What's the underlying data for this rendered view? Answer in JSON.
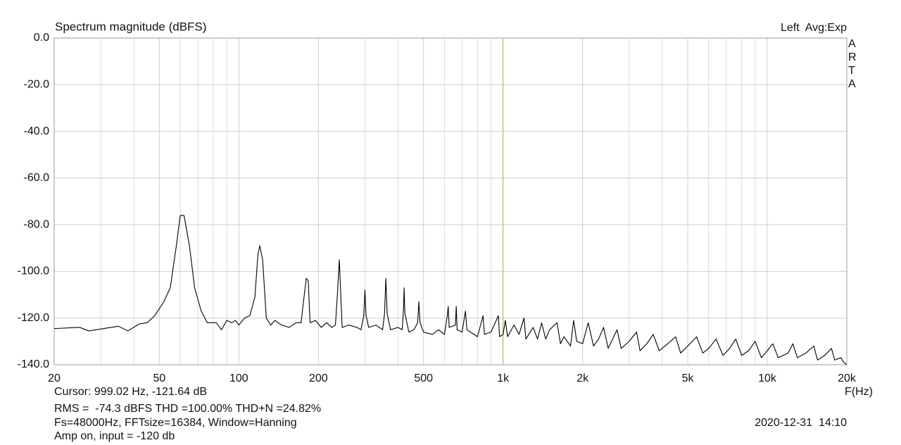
{
  "chart_data": {
    "type": "line",
    "title": "Spectrum magnitude (dBFS)",
    "header_right": "Left  Avg:Exp",
    "side_label": [
      "A",
      "R",
      "T",
      "A"
    ],
    "x_label": "F(Hz)",
    "x_scale": "log",
    "xlim": [
      20,
      20000
    ],
    "xticks": [
      20,
      50,
      100,
      200,
      500,
      {
        "value": 1000,
        "label": "1k"
      },
      {
        "value": 2000,
        "label": "2k"
      },
      {
        "value": 5000,
        "label": "5k"
      },
      {
        "value": 10000,
        "label": "10k"
      },
      {
        "value": 20000,
        "label": "20k"
      }
    ],
    "x_minor_grid": [
      30,
      40,
      60,
      70,
      80,
      90,
      300,
      400,
      600,
      700,
      800,
      900,
      3000,
      4000,
      6000,
      7000,
      8000,
      9000
    ],
    "ylim": [
      -140,
      0
    ],
    "yticks": [
      {
        "value": 0,
        "label": "0.0"
      },
      {
        "value": -20,
        "label": "-20.0"
      },
      {
        "value": -40,
        "label": "-40.0"
      },
      {
        "value": -60,
        "label": "-60.0"
      },
      {
        "value": -80,
        "label": "-80.0"
      },
      {
        "value": -100,
        "label": "-100.0"
      },
      {
        "value": -120,
        "label": "-120.0"
      },
      {
        "value": -140,
        "label": "-140.0"
      }
    ],
    "grid": true,
    "cursor_x": 999.02,
    "cursor_color": "#b7c98c",
    "cursor_text": "Cursor: 999.02 Hz, -121.64 dB",
    "stats_text": "RMS =  -74.3 dBFS THD =100.00% THD+N =24.82%",
    "stats_color": "#cc1f1f",
    "settings_text": "Fs=48000Hz, FFTsize=16384, Window=Hanning",
    "timestamp": "2020-12-31  14:10",
    "note_text": "Amp on, input = -120 db",
    "x": [
      20,
      25,
      27,
      35,
      38,
      42,
      45,
      48,
      52,
      55,
      58,
      60,
      62,
      65,
      68,
      72,
      76,
      82,
      86,
      90,
      94,
      97,
      100,
      105,
      110,
      115,
      118,
      120,
      123,
      127,
      132,
      137,
      145,
      155,
      165,
      172,
      176,
      180,
      183,
      186,
      195,
      205,
      215,
      225,
      232,
      236,
      240,
      243,
      246,
      260,
      280,
      290,
      297,
      300,
      303,
      310,
      330,
      350,
      356,
      360,
      364,
      375,
      400,
      415,
      420,
      422,
      425,
      440,
      460,
      475,
      480,
      485,
      500,
      540,
      570,
      600,
      615,
      620,
      625,
      660,
      665,
      670,
      700,
      720,
      730,
      800,
      840,
      850,
      900,
      960,
      970,
      1000,
      1020,
      1040,
      1100,
      1150,
      1200,
      1220,
      1300,
      1350,
      1400,
      1450,
      1500,
      1600,
      1650,
      1700,
      1800,
      1850,
      1900,
      2000,
      2100,
      2200,
      2300,
      2400,
      2500,
      2700,
      2800,
      3000,
      3200,
      3300,
      3500,
      3700,
      3900,
      4200,
      4500,
      4700,
      5000,
      5400,
      5700,
      6000,
      6400,
      6800,
      7200,
      7600,
      8000,
      8500,
      9000,
      9500,
      10000,
      10500,
      11000,
      12000,
      12500,
      13000,
      14000,
      15000,
      15500,
      16500,
      17500,
      18000,
      19000,
      19500,
      20000
    ],
    "series": [
      {
        "color": "#000000",
        "values": [
          -124.5,
          -124,
          -125.5,
          -123.5,
          -125.5,
          -122.5,
          -122,
          -119,
          -113,
          -107,
          -89,
          -76,
          -76,
          -89,
          -107,
          -117,
          -122,
          -122,
          -125,
          -121,
          -122,
          -121,
          -123,
          -120,
          -119,
          -111,
          -93,
          -89,
          -95,
          -120,
          -123,
          -121,
          -123,
          -124,
          -122,
          -122,
          -112,
          -103,
          -104,
          -122,
          -121,
          -124,
          -122,
          -124,
          -123,
          -110,
          -95,
          -110,
          -124,
          -123,
          -124,
          -125,
          -119,
          -108,
          -119,
          -124,
          -123,
          -125,
          -118,
          -103,
          -118,
          -125,
          -124,
          -125,
          -116,
          -107,
          -118,
          -126,
          -125,
          -122,
          -113,
          -122,
          -126,
          -127,
          -125,
          -127,
          -119,
          -115,
          -124,
          -123,
          -115,
          -125,
          -126,
          -117,
          -125,
          -128,
          -119,
          -127,
          -126,
          -119,
          -128,
          -127,
          -121,
          -128,
          -123,
          -127,
          -120,
          -129,
          -124,
          -129,
          -122,
          -129,
          -125,
          -122,
          -131,
          -128,
          -132,
          -121,
          -130,
          -131,
          -122,
          -132,
          -129,
          -124,
          -133,
          -125,
          -133,
          -130,
          -126,
          -134,
          -131,
          -127,
          -134,
          -131,
          -128,
          -135,
          -132,
          -128,
          -135,
          -133,
          -129,
          -136,
          -133,
          -129,
          -136,
          -134,
          -130,
          -137,
          -134,
          -131,
          -137,
          -135,
          -131,
          -137,
          -135,
          -132,
          -138,
          -136,
          -133,
          -138,
          -137,
          -139,
          -140
        ]
      }
    ]
  }
}
